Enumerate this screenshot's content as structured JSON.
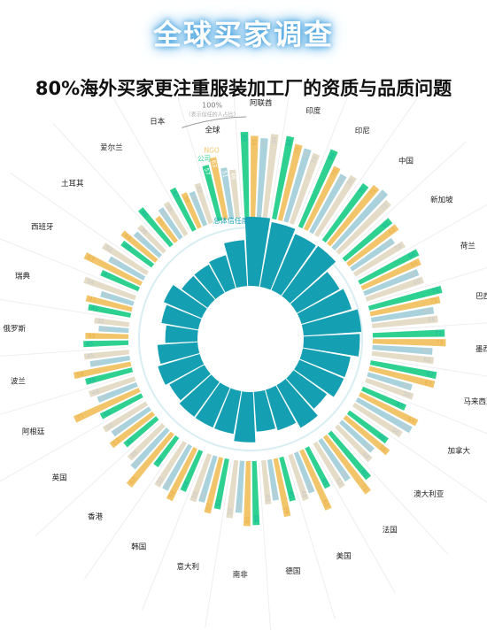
{
  "banner": {
    "title": "全球买家调查"
  },
  "headline": "80%海外买家更注重服装加工厂的资质与品质问题",
  "colors": {
    "company": "#2ed18f",
    "ngo": "#f3c56b",
    "third": "#a9d2dc",
    "fourth": "#e5dcc8",
    "inner": "#159fb2",
    "label_teal": "#19b6a3",
    "label_gold": "#e7b04a"
  },
  "chart_data": {
    "type": "radial-bar",
    "scale_label": "100%",
    "scale_sublabel": "（表示信任的人占比）",
    "series": [
      {
        "name": "公司"
      },
      {
        "name": "NGO"
      },
      {
        "name": ""
      },
      {
        "name": ""
      }
    ],
    "inner_series": "总体信任度",
    "groups": [
      {
        "name": "全球",
        "values": [
          57,
          63,
          51,
          48
        ]
      },
      {
        "name": "阿联酋",
        "values": [
          85,
          81,
          79,
          84
        ]
      },
      {
        "name": "印度",
        "values": [
          84,
          78,
          76,
          74
        ]
      },
      {
        "name": "印尼",
        "values": [
          84,
          70,
          66,
          70
        ]
      },
      {
        "name": "中国",
        "values": [
          70,
          75,
          77,
          72
        ]
      },
      {
        "name": "新加坡",
        "values": [
          61,
          62,
          51,
          58
        ]
      },
      {
        "name": "荷兰",
        "values": [
          66,
          64,
          58,
          60
        ]
      },
      {
        "name": "巴西",
        "values": [
          75,
          71,
          63,
          66
        ]
      },
      {
        "name": "墨西哥",
        "values": [
          72,
          73,
          60,
          62
        ]
      },
      {
        "name": "马来西亚",
        "values": [
          67,
          67,
          46,
          50
        ]
      },
      {
        "name": "加拿大",
        "values": [
          47,
          64,
          62,
          56
        ]
      },
      {
        "name": "澳大利亚",
        "values": [
          48,
          56,
          43,
          48
        ]
      },
      {
        "name": "法国",
        "values": [
          60,
          71,
          49,
          52
        ]
      },
      {
        "name": "美国",
        "values": [
          45,
          65,
          43,
          48
        ]
      },
      {
        "name": "德国",
        "values": [
          45,
          59,
          41,
          44
        ]
      },
      {
        "name": "南非",
        "values": [
          64,
          65,
          52,
          58
        ]
      },
      {
        "name": "意大利",
        "values": [
          51,
          57,
          48,
          50
        ]
      },
      {
        "name": "韩国",
        "values": [
          44,
          58,
          51,
          52
        ]
      },
      {
        "name": "香港",
        "values": [
          36,
          68,
          52,
          48
        ]
      },
      {
        "name": "英国",
        "values": [
          42,
          53,
          45,
          50
        ]
      },
      {
        "name": "阿根廷",
        "values": [
          46,
          71,
          42,
          48
        ]
      },
      {
        "name": "波兰",
        "values": [
          48,
          58,
          40,
          45
        ]
      },
      {
        "name": "俄罗斯",
        "values": [
          45,
          43,
          30,
          35
        ]
      },
      {
        "name": "瑞典",
        "values": [
          43,
          47,
          34,
          54
        ]
      },
      {
        "name": "西班牙",
        "values": [
          41,
          63,
          40,
          52
        ]
      },
      {
        "name": "土耳其",
        "values": [
          38,
          44,
          34,
          36
        ]
      },
      {
        "name": "爱尔兰",
        "values": [
          48,
          31,
          36,
          38
        ]
      },
      {
        "name": "日本",
        "values": [
          47,
          38,
          36,
          42
        ]
      }
    ]
  }
}
